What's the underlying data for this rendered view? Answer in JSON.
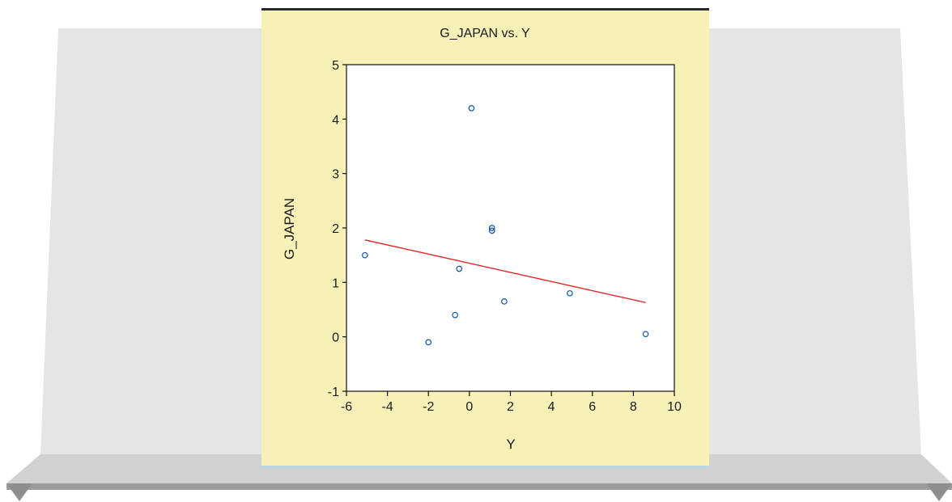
{
  "colors": {
    "panel_background": "#f7f1b8",
    "plot_background": "#ffffff",
    "marker": "#1f5fa8",
    "regression_line": "#e02020",
    "backdrop": "#e4e5e7",
    "shelf": "#c9cacc"
  },
  "chart_data": {
    "type": "scatter",
    "title": "G_JAPAN vs. Y",
    "xlabel": "Y",
    "ylabel": "G_JAPAN",
    "xlim": [
      -6,
      10
    ],
    "ylim": [
      -1,
      5
    ],
    "xticks": [
      "-6",
      "-4",
      "-2",
      "0",
      "2",
      "4",
      "6",
      "8",
      "10"
    ],
    "yticks": [
      "-1",
      "0",
      "1",
      "2",
      "3",
      "4",
      "5"
    ],
    "grid": false,
    "points": [
      {
        "x": -5.1,
        "y": 1.5
      },
      {
        "x": -2.0,
        "y": -0.1
      },
      {
        "x": -0.7,
        "y": 0.4
      },
      {
        "x": -0.5,
        "y": 1.25
      },
      {
        "x": 0.1,
        "y": 4.2
      },
      {
        "x": 1.1,
        "y": 1.95
      },
      {
        "x": 1.1,
        "y": 2.0
      },
      {
        "x": 1.7,
        "y": 0.65
      },
      {
        "x": 4.9,
        "y": 0.8
      },
      {
        "x": 8.6,
        "y": 0.05
      }
    ],
    "fit_line": {
      "x": [
        -5.1,
        8.6
      ],
      "y": [
        1.78,
        0.63
      ]
    }
  }
}
